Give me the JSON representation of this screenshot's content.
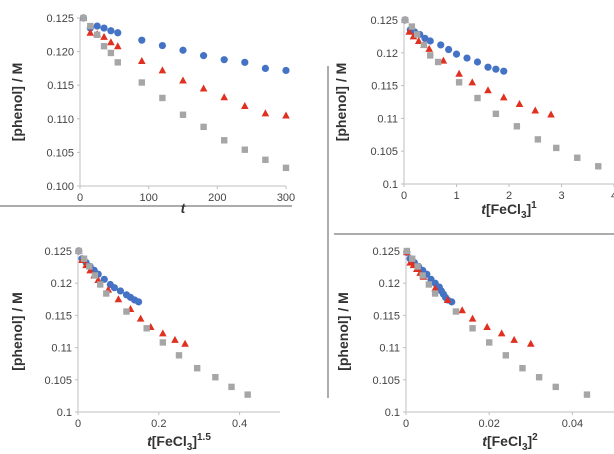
{
  "colors": {
    "series_a": "#4472C4",
    "series_b": "#E03020",
    "series_c": "#A6A6A6",
    "axis": "#BFBFBF",
    "divider": "#595959"
  },
  "chart_data": [
    {
      "type": "scatter",
      "id": "p1",
      "xlabel": "t",
      "xlabel_sup": "",
      "ylabel": "[phenol] / M",
      "xlim": [
        0,
        300
      ],
      "ylim": [
        0.1,
        0.125
      ],
      "xticks": [
        "0",
        "100",
        "200",
        "300"
      ],
      "xtick_values": [
        0,
        100,
        200,
        300
      ],
      "yticks": [
        "0.100",
        "0.105",
        "0.110",
        "0.115",
        "0.120",
        "0.125"
      ],
      "ytick_values": [
        0.1,
        0.105,
        0.11,
        0.115,
        0.12,
        0.125
      ],
      "series": [
        {
          "marker": "circle",
          "color": "#4472C4",
          "points": [
            [
              5,
              0.125
            ],
            [
              15,
              0.1235
            ],
            [
              25,
              0.1238
            ],
            [
              35,
              0.1235
            ],
            [
              45,
              0.1231
            ],
            [
              55,
              0.1228
            ],
            [
              90,
              0.1217
            ],
            [
              120,
              0.1209
            ],
            [
              150,
              0.1202
            ],
            [
              180,
              0.1194
            ],
            [
              210,
              0.1188
            ],
            [
              240,
              0.1184
            ],
            [
              270,
              0.1175
            ],
            [
              300,
              0.1172
            ]
          ]
        },
        {
          "marker": "triangle",
          "color": "#E03020",
          "points": [
            [
              5,
              0.125
            ],
            [
              15,
              0.1228
            ],
            [
              25,
              0.1226
            ],
            [
              35,
              0.1222
            ],
            [
              45,
              0.1214
            ],
            [
              55,
              0.1208
            ],
            [
              90,
              0.1186
            ],
            [
              120,
              0.1172
            ],
            [
              150,
              0.1157
            ],
            [
              180,
              0.1145
            ],
            [
              210,
              0.1132
            ],
            [
              240,
              0.1119
            ],
            [
              270,
              0.1108
            ],
            [
              300,
              0.1105
            ]
          ]
        },
        {
          "marker": "square",
          "color": "#A6A6A6",
          "points": [
            [
              5,
              0.125
            ],
            [
              15,
              0.1238
            ],
            [
              25,
              0.1225
            ],
            [
              35,
              0.1208
            ],
            [
              45,
              0.1198
            ],
            [
              55,
              0.1184
            ],
            [
              90,
              0.1154
            ],
            [
              120,
              0.1131
            ],
            [
              150,
              0.1106
            ],
            [
              180,
              0.1088
            ],
            [
              210,
              0.1068
            ],
            [
              240,
              0.1054
            ],
            [
              270,
              0.1039
            ],
            [
              300,
              0.1027
            ]
          ]
        }
      ]
    },
    {
      "type": "scatter",
      "id": "p2",
      "xlabel": "t[FeCl",
      "xlabel_sub": "3",
      "xlabel_close": "]",
      "xlabel_sup": "1",
      "ylabel": "[phenol] / M",
      "xlim": [
        0,
        4
      ],
      "ylim": [
        0.1,
        0.125
      ],
      "xticks": [
        "0",
        "1",
        "2",
        "3",
        "4"
      ],
      "xtick_values": [
        0,
        1,
        2,
        3,
        4
      ],
      "yticks": [
        "0.1",
        "0.105",
        "0.11",
        "0.115",
        "0.12",
        "0.125"
      ],
      "ytick_values": [
        0.1,
        0.105,
        0.11,
        0.115,
        0.12,
        0.125
      ],
      "series": [
        {
          "marker": "circle",
          "color": "#4472C4",
          "points": [
            [
              0.02,
              0.125
            ],
            [
              0.12,
              0.1235
            ],
            [
              0.2,
              0.1232
            ],
            [
              0.3,
              0.1228
            ],
            [
              0.4,
              0.1222
            ],
            [
              0.5,
              0.1218
            ],
            [
              0.7,
              0.1212
            ],
            [
              0.85,
              0.1205
            ],
            [
              1.0,
              0.1198
            ],
            [
              1.2,
              0.1192
            ],
            [
              1.4,
              0.1186
            ],
            [
              1.6,
              0.1178
            ],
            [
              1.75,
              0.1175
            ],
            [
              1.9,
              0.1172
            ]
          ]
        },
        {
          "marker": "triangle",
          "color": "#E03020",
          "points": [
            [
              0.02,
              0.125
            ],
            [
              0.1,
              0.1232
            ],
            [
              0.18,
              0.1225
            ],
            [
              0.28,
              0.1218
            ],
            [
              0.38,
              0.1212
            ],
            [
              0.48,
              0.1206
            ],
            [
              0.75,
              0.1188
            ],
            [
              1.05,
              0.1168
            ],
            [
              1.3,
              0.1155
            ],
            [
              1.6,
              0.1143
            ],
            [
              1.9,
              0.1132
            ],
            [
              2.2,
              0.1122
            ],
            [
              2.5,
              0.1112
            ],
            [
              2.8,
              0.1106
            ]
          ]
        },
        {
          "marker": "square",
          "color": "#A6A6A6",
          "points": [
            [
              0.02,
              0.125
            ],
            [
              0.15,
              0.124
            ],
            [
              0.25,
              0.1228
            ],
            [
              0.38,
              0.1212
            ],
            [
              0.5,
              0.1196
            ],
            [
              0.65,
              0.1186
            ],
            [
              1.05,
              0.1155
            ],
            [
              1.4,
              0.1131
            ],
            [
              1.75,
              0.1107
            ],
            [
              2.15,
              0.1088
            ],
            [
              2.55,
              0.1068
            ],
            [
              2.9,
              0.1055
            ],
            [
              3.3,
              0.104
            ],
            [
              3.7,
              0.1027
            ]
          ]
        }
      ]
    },
    {
      "type": "scatter",
      "id": "p3",
      "xlabel": "t[FeCl",
      "xlabel_sub": "3",
      "xlabel_close": "]",
      "xlabel_sup": "1.5",
      "ylabel": "[phenol] / M",
      "xlim": [
        0,
        0.5
      ],
      "ylim": [
        0.1,
        0.125
      ],
      "xticks": [
        "0",
        "0.2",
        "0.4"
      ],
      "xtick_values": [
        0,
        0.2,
        0.4
      ],
      "yticks": [
        "0.1",
        "0.105",
        "0.11",
        "0.115",
        "0.12",
        "0.125"
      ],
      "ytick_values": [
        0.1,
        0.105,
        0.11,
        0.115,
        0.12,
        0.125
      ],
      "series": [
        {
          "marker": "circle",
          "color": "#4472C4",
          "points": [
            [
              0.002,
              0.125
            ],
            [
              0.01,
              0.1238
            ],
            [
              0.02,
              0.1232
            ],
            [
              0.03,
              0.1226
            ],
            [
              0.04,
              0.122
            ],
            [
              0.05,
              0.1214
            ],
            [
              0.065,
              0.1206
            ],
            [
              0.08,
              0.1198
            ],
            [
              0.09,
              0.1193
            ],
            [
              0.105,
              0.1188
            ],
            [
              0.12,
              0.1182
            ],
            [
              0.13,
              0.1178
            ],
            [
              0.14,
              0.1174
            ],
            [
              0.15,
              0.1171
            ]
          ]
        },
        {
          "marker": "triangle",
          "color": "#E03020",
          "points": [
            [
              0.002,
              0.125
            ],
            [
              0.01,
              0.1236
            ],
            [
              0.02,
              0.1228
            ],
            [
              0.03,
              0.122
            ],
            [
              0.04,
              0.1212
            ],
            [
              0.05,
              0.1205
            ],
            [
              0.075,
              0.119
            ],
            [
              0.1,
              0.1175
            ],
            [
              0.13,
              0.116
            ],
            [
              0.155,
              0.1145
            ],
            [
              0.18,
              0.1132
            ],
            [
              0.21,
              0.1122
            ],
            [
              0.24,
              0.1112
            ],
            [
              0.265,
              0.1106
            ]
          ]
        },
        {
          "marker": "square",
          "color": "#A6A6A6",
          "points": [
            [
              0.002,
              0.125
            ],
            [
              0.015,
              0.1238
            ],
            [
              0.028,
              0.1226
            ],
            [
              0.042,
              0.1212
            ],
            [
              0.055,
              0.1198
            ],
            [
              0.07,
              0.1184
            ],
            [
              0.12,
              0.1156
            ],
            [
              0.17,
              0.113
            ],
            [
              0.21,
              0.1108
            ],
            [
              0.25,
              0.1088
            ],
            [
              0.295,
              0.1068
            ],
            [
              0.34,
              0.1054
            ],
            [
              0.38,
              0.1039
            ],
            [
              0.42,
              0.1027
            ]
          ]
        }
      ]
    },
    {
      "type": "scatter",
      "id": "p4",
      "xlabel": "t[FeCl",
      "xlabel_sub": "3",
      "xlabel_close": "]",
      "xlabel_sup": "2",
      "ylabel": "[phenol] / M",
      "xlim": [
        0,
        0.05
      ],
      "ylim": [
        0.1,
        0.125
      ],
      "xticks": [
        "0",
        "0.02",
        "0.04"
      ],
      "xtick_values": [
        0,
        0.02,
        0.04
      ],
      "yticks": [
        "0.1",
        "0.105",
        "0.11",
        "0.115",
        "0.12",
        "0.125"
      ],
      "ytick_values": [
        0.1,
        0.105,
        0.11,
        0.115,
        0.12,
        0.125
      ],
      "series": [
        {
          "marker": "circle",
          "color": "#4472C4",
          "points": [
            [
              0.0002,
              0.1248
            ],
            [
              0.001,
              0.1238
            ],
            [
              0.002,
              0.1232
            ],
            [
              0.003,
              0.1226
            ],
            [
              0.004,
              0.122
            ],
            [
              0.005,
              0.1214
            ],
            [
              0.006,
              0.1206
            ],
            [
              0.007,
              0.12
            ],
            [
              0.008,
              0.1194
            ],
            [
              0.0085,
              0.1188
            ],
            [
              0.009,
              0.1183
            ],
            [
              0.0095,
              0.1178
            ],
            [
              0.01,
              0.1174
            ],
            [
              0.011,
              0.1171
            ]
          ]
        },
        {
          "marker": "triangle",
          "color": "#E03020",
          "points": [
            [
              0.0002,
              0.1248
            ],
            [
              0.001,
              0.1232
            ],
            [
              0.0018,
              0.1228
            ],
            [
              0.0026,
              0.1222
            ],
            [
              0.0034,
              0.1216
            ],
            [
              0.0042,
              0.121
            ],
            [
              0.007,
              0.1192
            ],
            [
              0.01,
              0.1174
            ],
            [
              0.0135,
              0.1158
            ],
            [
              0.016,
              0.1145
            ],
            [
              0.0195,
              0.1132
            ],
            [
              0.023,
              0.1122
            ],
            [
              0.026,
              0.1112
            ],
            [
              0.03,
              0.1106
            ]
          ]
        },
        {
          "marker": "square",
          "color": "#A6A6A6",
          "points": [
            [
              0.0002,
              0.125
            ],
            [
              0.0015,
              0.1238
            ],
            [
              0.0028,
              0.1226
            ],
            [
              0.004,
              0.1212
            ],
            [
              0.0055,
              0.1198
            ],
            [
              0.007,
              0.1184
            ],
            [
              0.012,
              0.1156
            ],
            [
              0.016,
              0.113
            ],
            [
              0.02,
              0.1108
            ],
            [
              0.024,
              0.1088
            ],
            [
              0.028,
              0.1068
            ],
            [
              0.032,
              0.1054
            ],
            [
              0.036,
              0.1039
            ],
            [
              0.0435,
              0.1027
            ]
          ]
        }
      ]
    }
  ]
}
